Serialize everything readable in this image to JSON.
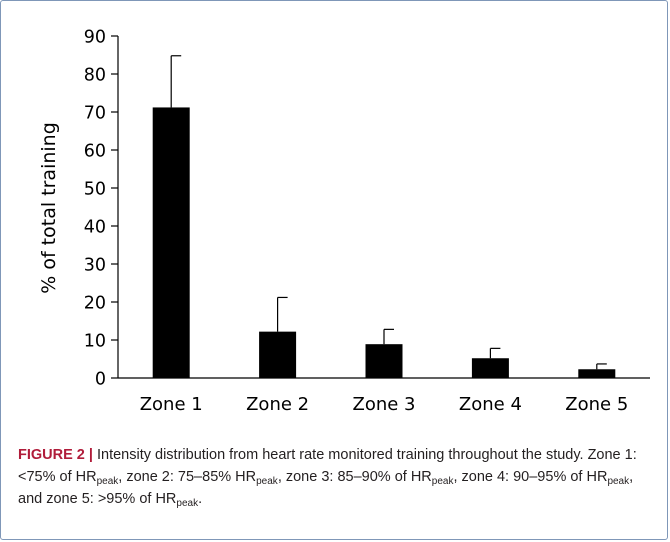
{
  "chart_data": {
    "type": "bar",
    "categories": [
      "Zone 1",
      "Zone 2",
      "Zone 3",
      "Zone 4",
      "Zone 5"
    ],
    "values": [
      71.2,
      12.2,
      8.9,
      5.2,
      2.3
    ],
    "errors": [
      13.6,
      9.0,
      3.9,
      2.6,
      1.4
    ],
    "ylabel": "% of total training",
    "xlabel": "",
    "ylim": [
      0,
      90
    ],
    "yticks": [
      0,
      10,
      20,
      30,
      40,
      50,
      60,
      70,
      80,
      90
    ],
    "grid": false,
    "bar_color": "#000000"
  },
  "caption": {
    "label": "FIGURE 2 |",
    "text_1": " Intensity distribution from heart rate monitored training throughout the study. Zone 1: <75% of HR",
    "sub_1": "peak",
    "text_2": ", zone 2: 75–85% HR",
    "sub_2": "peak",
    "text_3": ", zone 3: 85–90% of HR",
    "sub_3": "peak",
    "text_4": ", zone 4: 90–95% of HR",
    "sub_4": "peak",
    "text_5": ", and zone 5: >95% of HR",
    "sub_5": "peak",
    "text_6": "."
  },
  "colors": {
    "frame": "#7f97b8",
    "caption_label": "#b01c3a"
  }
}
